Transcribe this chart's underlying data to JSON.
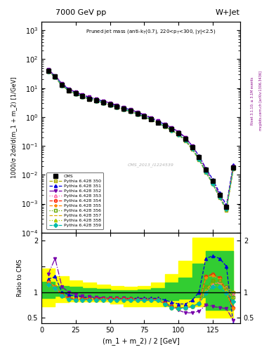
{
  "title_left": "7000 GeV pp",
  "title_right": "W+Jet",
  "annotation": "Pruned jet mass (anti-k_{T}(0.7), 220<p_{T}<300, |y|<2.5)",
  "watermark": "CMS_2013_I1224539",
  "ylabel_main": "1000/σ 2dσ/d(m_1 + m_2) [1/GeV]",
  "ylabel_ratio": "Ratio to CMS",
  "xlabel": "(m_1 + m_2) / 2 [GeV]",
  "x_data": [
    5,
    10,
    15,
    20,
    25,
    30,
    35,
    40,
    45,
    50,
    55,
    60,
    65,
    70,
    75,
    80,
    85,
    90,
    95,
    100,
    105,
    110,
    115,
    120,
    125,
    130,
    135,
    140
  ],
  "cms_y": [
    40,
    25,
    13,
    8.5,
    6.5,
    5.2,
    4.3,
    3.7,
    3.2,
    2.7,
    2.3,
    1.9,
    1.6,
    1.3,
    1.05,
    0.85,
    0.65,
    0.5,
    0.38,
    0.28,
    0.18,
    0.09,
    0.04,
    0.015,
    0.006,
    0.002,
    0.0008,
    0.018
  ],
  "series": [
    {
      "label": "Pythia 6.428 350",
      "color": "#aaaa00",
      "linestyle": "--",
      "marker": "s",
      "fillstyle": "none",
      "y": [
        38,
        24,
        12,
        8.0,
        6.2,
        5.0,
        4.1,
        3.6,
        3.1,
        2.6,
        2.2,
        1.85,
        1.55,
        1.25,
        1.0,
        0.8,
        0.62,
        0.46,
        0.34,
        0.24,
        0.15,
        0.075,
        0.033,
        0.012,
        0.0048,
        0.0016,
        0.0006,
        0.016
      ],
      "ratio": [
        1.2,
        1.1,
        0.95,
        0.9,
        0.88,
        0.88,
        0.87,
        0.87,
        0.87,
        0.87,
        0.87,
        0.87,
        0.87,
        0.87,
        0.87,
        0.87,
        0.87,
        0.8,
        0.72,
        0.7,
        0.7,
        0.72,
        0.78,
        1.0,
        1.22,
        1.22,
        1.1,
        1.0
      ]
    },
    {
      "label": "Pythia 6.428 351",
      "color": "#0000dd",
      "linestyle": "--",
      "marker": "^",
      "fillstyle": "full",
      "y": [
        42,
        26,
        14,
        9.0,
        7.0,
        5.7,
        4.7,
        4.1,
        3.5,
        2.9,
        2.5,
        2.1,
        1.75,
        1.45,
        1.15,
        0.92,
        0.72,
        0.55,
        0.41,
        0.3,
        0.19,
        0.1,
        0.045,
        0.017,
        0.007,
        0.0024,
        0.0009,
        0.022
      ],
      "ratio": [
        1.25,
        1.3,
        1.0,
        0.95,
        0.92,
        0.9,
        0.89,
        0.88,
        0.88,
        0.87,
        0.87,
        0.88,
        0.88,
        0.88,
        0.88,
        0.88,
        0.88,
        0.85,
        0.8,
        0.77,
        0.77,
        0.84,
        1.0,
        1.65,
        1.7,
        1.65,
        1.5,
        0.38
      ]
    },
    {
      "label": "Pythia 6.428 352",
      "color": "#7700aa",
      "linestyle": "-.",
      "marker": "v",
      "fillstyle": "full",
      "y": [
        43,
        27,
        14.5,
        9.5,
        7.3,
        5.9,
        4.9,
        4.25,
        3.65,
        3.05,
        2.6,
        2.15,
        1.8,
        1.5,
        1.2,
        0.96,
        0.75,
        0.57,
        0.43,
        0.31,
        0.2,
        0.1,
        0.044,
        0.016,
        0.0063,
        0.0021,
        0.0008,
        0.02
      ],
      "ratio": [
        1.35,
        1.65,
        1.1,
        1.0,
        0.95,
        0.92,
        0.91,
        0.9,
        0.89,
        0.88,
        0.88,
        0.88,
        0.87,
        0.86,
        0.86,
        0.85,
        0.85,
        0.78,
        0.72,
        0.65,
        0.6,
        0.6,
        0.63,
        0.75,
        0.72,
        0.7,
        0.68,
        0.45
      ]
    },
    {
      "label": "Pythia 6.428 353",
      "color": "#ff66aa",
      "linestyle": ":",
      "marker": "^",
      "fillstyle": "none",
      "y": [
        38,
        24,
        12.5,
        8.2,
        6.3,
        5.1,
        4.2,
        3.65,
        3.1,
        2.6,
        2.2,
        1.85,
        1.55,
        1.27,
        1.02,
        0.82,
        0.63,
        0.47,
        0.35,
        0.25,
        0.16,
        0.082,
        0.035,
        0.013,
        0.005,
        0.0017,
        0.00065,
        0.0165
      ],
      "ratio": [
        1.2,
        1.1,
        0.95,
        0.88,
        0.87,
        0.87,
        0.87,
        0.87,
        0.87,
        0.87,
        0.87,
        0.87,
        0.87,
        0.86,
        0.86,
        0.86,
        0.86,
        0.79,
        0.72,
        0.69,
        0.7,
        0.72,
        0.78,
        0.99,
        1.15,
        1.2,
        1.1,
        0.95
      ]
    },
    {
      "label": "Pythia 6.428 354",
      "color": "#ff2200",
      "linestyle": "--",
      "marker": "o",
      "fillstyle": "none",
      "y": [
        38,
        24,
        12.5,
        8.2,
        6.3,
        5.1,
        4.2,
        3.65,
        3.1,
        2.6,
        2.2,
        1.85,
        1.55,
        1.27,
        1.02,
        0.82,
        0.63,
        0.47,
        0.35,
        0.25,
        0.16,
        0.082,
        0.035,
        0.013,
        0.005,
        0.0017,
        0.00065,
        0.0165
      ],
      "ratio": [
        1.2,
        1.1,
        0.95,
        0.88,
        0.87,
        0.87,
        0.87,
        0.87,
        0.87,
        0.87,
        0.87,
        0.87,
        0.87,
        0.86,
        0.86,
        0.86,
        0.86,
        0.79,
        0.72,
        0.69,
        0.7,
        0.72,
        0.78,
        1.3,
        1.35,
        1.28,
        1.0,
        0.7
      ]
    },
    {
      "label": "Pythia 6.428 355",
      "color": "#ff8800",
      "linestyle": "--",
      "marker": "*",
      "fillstyle": "full",
      "y": [
        38,
        24,
        12.5,
        8.2,
        6.3,
        5.1,
        4.2,
        3.65,
        3.1,
        2.6,
        2.2,
        1.85,
        1.55,
        1.27,
        1.02,
        0.82,
        0.63,
        0.47,
        0.35,
        0.25,
        0.16,
        0.082,
        0.035,
        0.013,
        0.005,
        0.0017,
        0.00065,
        0.0165
      ],
      "ratio": [
        1.2,
        1.1,
        0.92,
        0.86,
        0.85,
        0.85,
        0.85,
        0.85,
        0.85,
        0.85,
        0.85,
        0.85,
        0.85,
        0.84,
        0.84,
        0.84,
        0.84,
        0.77,
        0.7,
        0.68,
        0.7,
        0.72,
        0.78,
        1.28,
        1.32,
        1.25,
        0.98,
        0.68
      ]
    },
    {
      "label": "Pythia 6.428 356",
      "color": "#66aa00",
      "linestyle": ":",
      "marker": "s",
      "fillstyle": "none",
      "y": [
        38,
        24,
        12.5,
        8.2,
        6.3,
        5.1,
        4.2,
        3.65,
        3.1,
        2.6,
        2.2,
        1.85,
        1.55,
        1.27,
        1.02,
        0.82,
        0.63,
        0.47,
        0.35,
        0.25,
        0.16,
        0.082,
        0.035,
        0.013,
        0.005,
        0.0017,
        0.00065,
        0.0165
      ],
      "ratio": [
        1.15,
        1.08,
        0.92,
        0.86,
        0.85,
        0.85,
        0.85,
        0.85,
        0.85,
        0.85,
        0.85,
        0.85,
        0.85,
        0.84,
        0.84,
        0.84,
        0.84,
        0.77,
        0.7,
        0.68,
        0.7,
        0.72,
        0.78,
        1.1,
        1.22,
        1.22,
        1.1,
        0.9
      ]
    },
    {
      "label": "Pythia 6.428 357",
      "color": "#ddaa00",
      "linestyle": "--",
      "marker": "None",
      "fillstyle": "none",
      "y": [
        38,
        24,
        12.5,
        8.2,
        6.3,
        5.1,
        4.2,
        3.65,
        3.1,
        2.6,
        2.2,
        1.85,
        1.55,
        1.27,
        1.02,
        0.82,
        0.63,
        0.47,
        0.35,
        0.25,
        0.16,
        0.082,
        0.035,
        0.013,
        0.005,
        0.0017,
        0.00065,
        0.0165
      ],
      "ratio": [
        1.15,
        1.08,
        0.92,
        0.86,
        0.85,
        0.85,
        0.85,
        0.85,
        0.85,
        0.85,
        0.85,
        0.85,
        0.85,
        0.84,
        0.84,
        0.84,
        0.84,
        0.77,
        0.7,
        0.68,
        0.7,
        0.72,
        0.78,
        1.05,
        1.17,
        1.17,
        1.05,
        0.87
      ]
    },
    {
      "label": "Pythia 6.428 358",
      "color": "#aacc00",
      "linestyle": ":",
      "marker": "^",
      "fillstyle": "full",
      "y": [
        38,
        24,
        12.5,
        8.2,
        6.3,
        5.1,
        4.2,
        3.65,
        3.1,
        2.6,
        2.2,
        1.85,
        1.55,
        1.27,
        1.02,
        0.82,
        0.63,
        0.47,
        0.35,
        0.25,
        0.16,
        0.082,
        0.035,
        0.013,
        0.005,
        0.0017,
        0.00065,
        0.0165
      ],
      "ratio": [
        1.15,
        1.08,
        0.92,
        0.86,
        0.85,
        0.85,
        0.85,
        0.85,
        0.85,
        0.85,
        0.85,
        0.85,
        0.85,
        0.84,
        0.84,
        0.84,
        0.84,
        0.77,
        0.7,
        0.68,
        0.7,
        0.72,
        0.78,
        1.0,
        1.12,
        1.12,
        1.02,
        0.83
      ]
    },
    {
      "label": "Pythia 6.428 359",
      "color": "#00bbaa",
      "linestyle": "--",
      "marker": "D",
      "fillstyle": "full",
      "y": [
        38,
        24,
        12.5,
        8.2,
        6.3,
        5.1,
        4.2,
        3.65,
        3.1,
        2.6,
        2.2,
        1.85,
        1.55,
        1.27,
        1.02,
        0.82,
        0.63,
        0.47,
        0.35,
        0.25,
        0.16,
        0.082,
        0.035,
        0.013,
        0.005,
        0.0017,
        0.00065,
        0.0165
      ],
      "ratio": [
        1.15,
        1.08,
        0.92,
        0.86,
        0.85,
        0.85,
        0.85,
        0.85,
        0.85,
        0.85,
        0.85,
        0.85,
        0.85,
        0.84,
        0.84,
        0.84,
        0.84,
        0.77,
        0.7,
        0.68,
        0.7,
        0.72,
        0.78,
        0.98,
        1.1,
        1.1,
        0.98,
        0.82
      ]
    }
  ],
  "band_yellow_x_edges": [
    0,
    10,
    20,
    30,
    40,
    50,
    60,
    70,
    80,
    90,
    100,
    110,
    120,
    140
  ],
  "band_yellow_low": [
    0.72,
    0.8,
    0.82,
    0.82,
    0.82,
    0.78,
    0.72,
    0.72,
    0.72,
    0.72,
    0.72,
    0.72,
    0.5,
    0.5
  ],
  "band_yellow_high": [
    1.45,
    1.3,
    1.22,
    1.18,
    1.15,
    1.12,
    1.1,
    1.12,
    1.18,
    1.35,
    1.6,
    2.05,
    2.05,
    2.05
  ],
  "band_green_x_edges": [
    0,
    10,
    20,
    30,
    40,
    50,
    60,
    70,
    80,
    90,
    100,
    110,
    120,
    140
  ],
  "band_green_low": [
    0.88,
    0.92,
    0.92,
    0.9,
    0.88,
    0.86,
    0.84,
    0.84,
    0.84,
    0.85,
    0.87,
    0.9,
    0.65,
    0.65
  ],
  "band_green_high": [
    1.2,
    1.12,
    1.1,
    1.08,
    1.06,
    1.04,
    1.03,
    1.05,
    1.08,
    1.18,
    1.28,
    1.55,
    1.8,
    1.8
  ]
}
